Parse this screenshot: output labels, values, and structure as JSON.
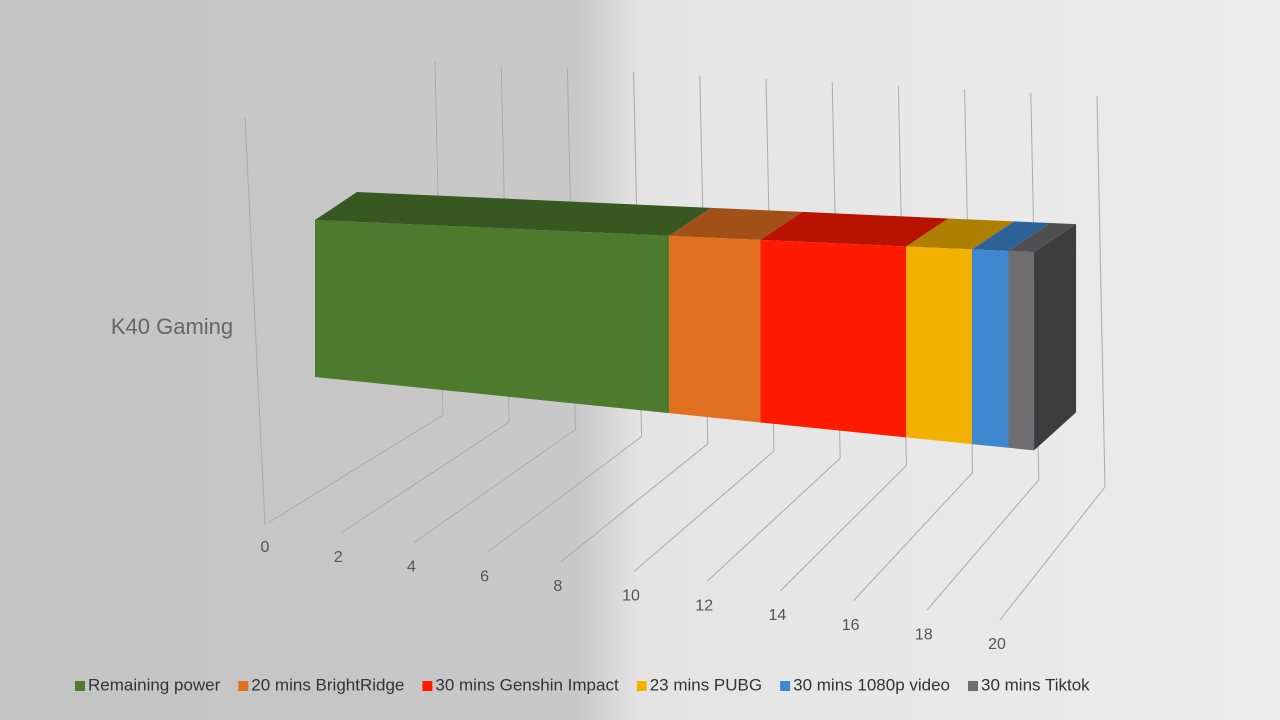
{
  "chart_data": {
    "type": "stacked_bar_3d",
    "categories": [
      "K40 Gaming"
    ],
    "series": [
      {
        "name": "Remaining power",
        "color": "#4e7a2e",
        "values": [
          9.7
        ]
      },
      {
        "name": "20 mins BrightRidge",
        "color": "#e07020",
        "values": [
          2.5
        ]
      },
      {
        "name": "30 mins Genshin Impact",
        "color": "#ff1a00",
        "values": [
          4.0
        ]
      },
      {
        "name": "23 mins PUBG",
        "color": "#f2b000",
        "values": [
          1.8
        ]
      },
      {
        "name": "30 mins 1080p video",
        "color": "#3f88d0",
        "values": [
          1.0
        ]
      },
      {
        "name": "30 mins Tiktok",
        "color": "#6e6e70",
        "values": [
          0.7
        ]
      }
    ],
    "xlim": [
      0,
      20
    ],
    "xticks": [
      0,
      2,
      4,
      6,
      8,
      10,
      12,
      14,
      16,
      18,
      20
    ],
    "grid": true,
    "legend": "bottom"
  }
}
